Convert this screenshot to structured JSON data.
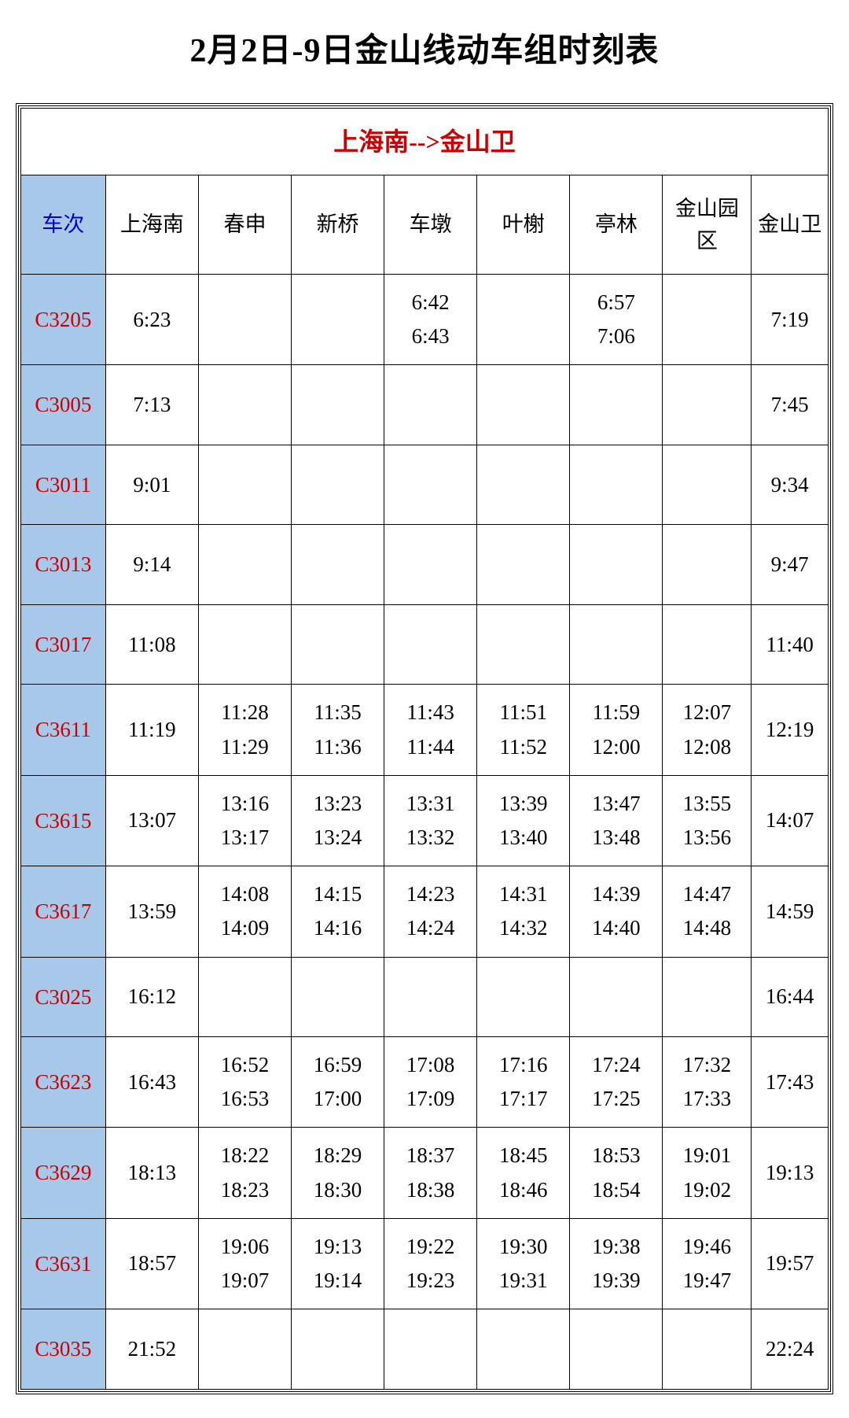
{
  "title": "2月2日-9日金山线动车组时刻表",
  "route_header": "上海南-->金山卫",
  "columns": [
    "车次",
    "上海南",
    "春申",
    "新桥",
    "车墩",
    "叶榭",
    "亭林",
    "金山园区",
    "金山卫"
  ],
  "colors": {
    "title_color": "#000000",
    "route_header_color": "#cc0000",
    "train_col_header_bg": "#a8c8ea",
    "train_col_header_text": "#0000cc",
    "train_cell_bg": "#a8c8ea",
    "train_cell_text": "#cc0000",
    "border_color": "#000000",
    "cell_text": "#000000",
    "background": "#ffffff"
  },
  "typography": {
    "title_fontsize": 42,
    "route_header_fontsize": 32,
    "cell_fontsize": 27,
    "font_family": "SimSun"
  },
  "rows": [
    {
      "train": "C3205",
      "cells": [
        "6:23",
        "",
        "",
        "6:42\n6:43",
        "",
        "6:57\n7:06",
        "",
        "7:19"
      ]
    },
    {
      "train": "C3005",
      "cells": [
        "7:13",
        "",
        "",
        "",
        "",
        "",
        "",
        "7:45"
      ]
    },
    {
      "train": "C3011",
      "cells": [
        "9:01",
        "",
        "",
        "",
        "",
        "",
        "",
        "9:34"
      ]
    },
    {
      "train": "C3013",
      "cells": [
        "9:14",
        "",
        "",
        "",
        "",
        "",
        "",
        "9:47"
      ]
    },
    {
      "train": "C3017",
      "cells": [
        "11:08",
        "",
        "",
        "",
        "",
        "",
        "",
        "11:40"
      ]
    },
    {
      "train": "C3611",
      "cells": [
        "11:19",
        "11:28\n11:29",
        "11:35\n11:36",
        "11:43\n11:44",
        "11:51\n11:52",
        "11:59\n12:00",
        "12:07\n12:08",
        "12:19"
      ]
    },
    {
      "train": "C3615",
      "cells": [
        "13:07",
        "13:16\n13:17",
        "13:23\n13:24",
        "13:31\n13:32",
        "13:39\n13:40",
        "13:47\n13:48",
        "13:55\n13:56",
        "14:07"
      ]
    },
    {
      "train": "C3617",
      "cells": [
        "13:59",
        "14:08\n14:09",
        "14:15\n14:16",
        "14:23\n14:24",
        "14:31\n14:32",
        "14:39\n14:40",
        "14:47\n14:48",
        "14:59"
      ]
    },
    {
      "train": "C3025",
      "cells": [
        "16:12",
        "",
        "",
        "",
        "",
        "",
        "",
        "16:44"
      ]
    },
    {
      "train": "C3623",
      "cells": [
        "16:43",
        "16:52\n16:53",
        "16:59\n17:00",
        "17:08\n17:09",
        "17:16\n17:17",
        "17:24\n17:25",
        "17:32\n17:33",
        "17:43"
      ]
    },
    {
      "train": "C3629",
      "cells": [
        "18:13",
        "18:22\n18:23",
        "18:29\n18:30",
        "18:37\n18:38",
        "18:45\n18:46",
        "18:53\n18:54",
        "19:01\n19:02",
        "19:13"
      ]
    },
    {
      "train": "C3631",
      "cells": [
        "18:57",
        "19:06\n19:07",
        "19:13\n19:14",
        "19:22\n19:23",
        "19:30\n19:31",
        "19:38\n19:39",
        "19:46\n19:47",
        "19:57"
      ]
    },
    {
      "train": "C3035",
      "cells": [
        "21:52",
        "",
        "",
        "",
        "",
        "",
        "",
        "22:24"
      ]
    }
  ]
}
